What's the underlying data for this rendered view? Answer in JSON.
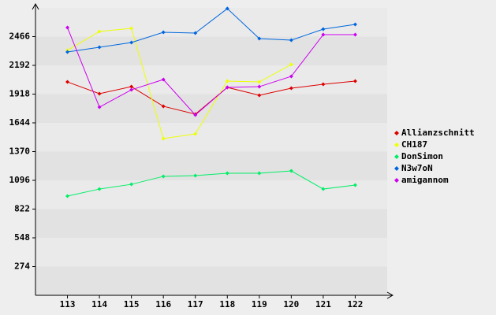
{
  "chart_data": {
    "type": "line",
    "categories": [
      "113",
      "114",
      "115",
      "116",
      "117",
      "118",
      "119",
      "120",
      "121",
      "122"
    ],
    "series": [
      {
        "name": "Allianzschnitt",
        "color": "#dd0000",
        "values": [
          2034,
          1922,
          1989,
          1802,
          1727,
          1982,
          1907,
          1974,
          2012,
          2042
        ]
      },
      {
        "name": "CH187",
        "color": "#eeff00",
        "values": [
          2335,
          2515,
          2545,
          1494,
          1539,
          2042,
          2034,
          2200,
          null,
          null
        ]
      },
      {
        "name": "DonSimon",
        "color": "#00ee66",
        "values": [
          946,
          1013,
          1058,
          1134,
          1141,
          1164,
          1164,
          1186,
          1013,
          1051
        ]
      },
      {
        "name": "N3w7oN",
        "color": "#0066dd",
        "values": [
          2320,
          2365,
          2410,
          2507,
          2500,
          2733,
          2447,
          2432,
          2537,
          2582
        ]
      },
      {
        "name": "amigannom",
        "color": "#cc00ee",
        "values": [
          2552,
          1794,
          1959,
          2057,
          1719,
          1982,
          1989,
          2087,
          2485,
          2485
        ]
      }
    ],
    "ylim": [
      0,
      2740
    ],
    "yticks": [
      274,
      548,
      822,
      1096,
      1370,
      1644,
      1918,
      2192,
      2466
    ],
    "grid": true
  }
}
